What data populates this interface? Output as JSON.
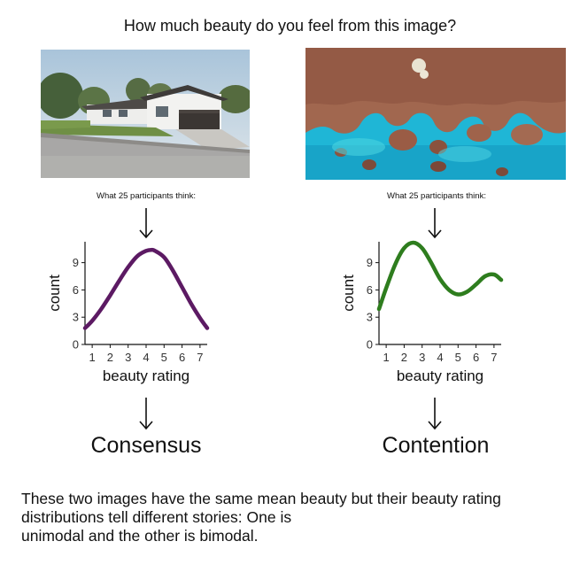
{
  "title": "How much beauty do you feel from this image?",
  "left": {
    "caption": "What 25 participants think:",
    "verdict": "Consensus",
    "image_description": "house"
  },
  "right": {
    "caption": "What 25 participants think:",
    "verdict": "Contention",
    "image_description": "coral reef aerial"
  },
  "footer": {
    "line1": "These two images have the same mean beauty but their beauty rating",
    "line2": "distributions tell different stories: One is",
    "line3": "unimodal and the other is bimodal."
  },
  "chart_data": [
    {
      "type": "line",
      "xlabel": "beauty rating",
      "ylabel": "count",
      "x_ticks": [
        1,
        2,
        3,
        4,
        5,
        6,
        7
      ],
      "y_ticks": [
        0,
        3,
        6,
        9
      ],
      "xlim": [
        0.6,
        7.4
      ],
      "ylim": [
        0,
        11.3
      ],
      "color": "#5c1a63",
      "x": [
        0.6,
        1.0,
        1.5,
        2.0,
        2.5,
        3.0,
        3.5,
        4.0,
        4.3,
        4.5,
        5.0,
        5.5,
        6.0,
        6.5,
        7.0,
        7.4
      ],
      "y": [
        1.8,
        2.6,
        3.9,
        5.4,
        7.0,
        8.5,
        9.7,
        10.3,
        10.4,
        10.3,
        9.6,
        8.1,
        6.3,
        4.5,
        2.9,
        1.8
      ]
    },
    {
      "type": "line",
      "xlabel": "beauty rating",
      "ylabel": "count",
      "x_ticks": [
        1,
        2,
        3,
        4,
        5,
        6,
        7
      ],
      "y_ticks": [
        0,
        3,
        6,
        9
      ],
      "xlim": [
        0.6,
        7.4
      ],
      "ylim": [
        0,
        11.3
      ],
      "color": "#2e7d1e",
      "x": [
        0.6,
        1.0,
        1.5,
        2.0,
        2.5,
        3.0,
        3.5,
        4.0,
        4.5,
        5.0,
        5.5,
        6.0,
        6.5,
        7.0,
        7.4
      ],
      "y": [
        3.9,
        6.2,
        8.8,
        10.6,
        11.2,
        10.6,
        9.0,
        7.2,
        6.0,
        5.5,
        5.8,
        6.6,
        7.5,
        7.7,
        7.1
      ]
    }
  ]
}
